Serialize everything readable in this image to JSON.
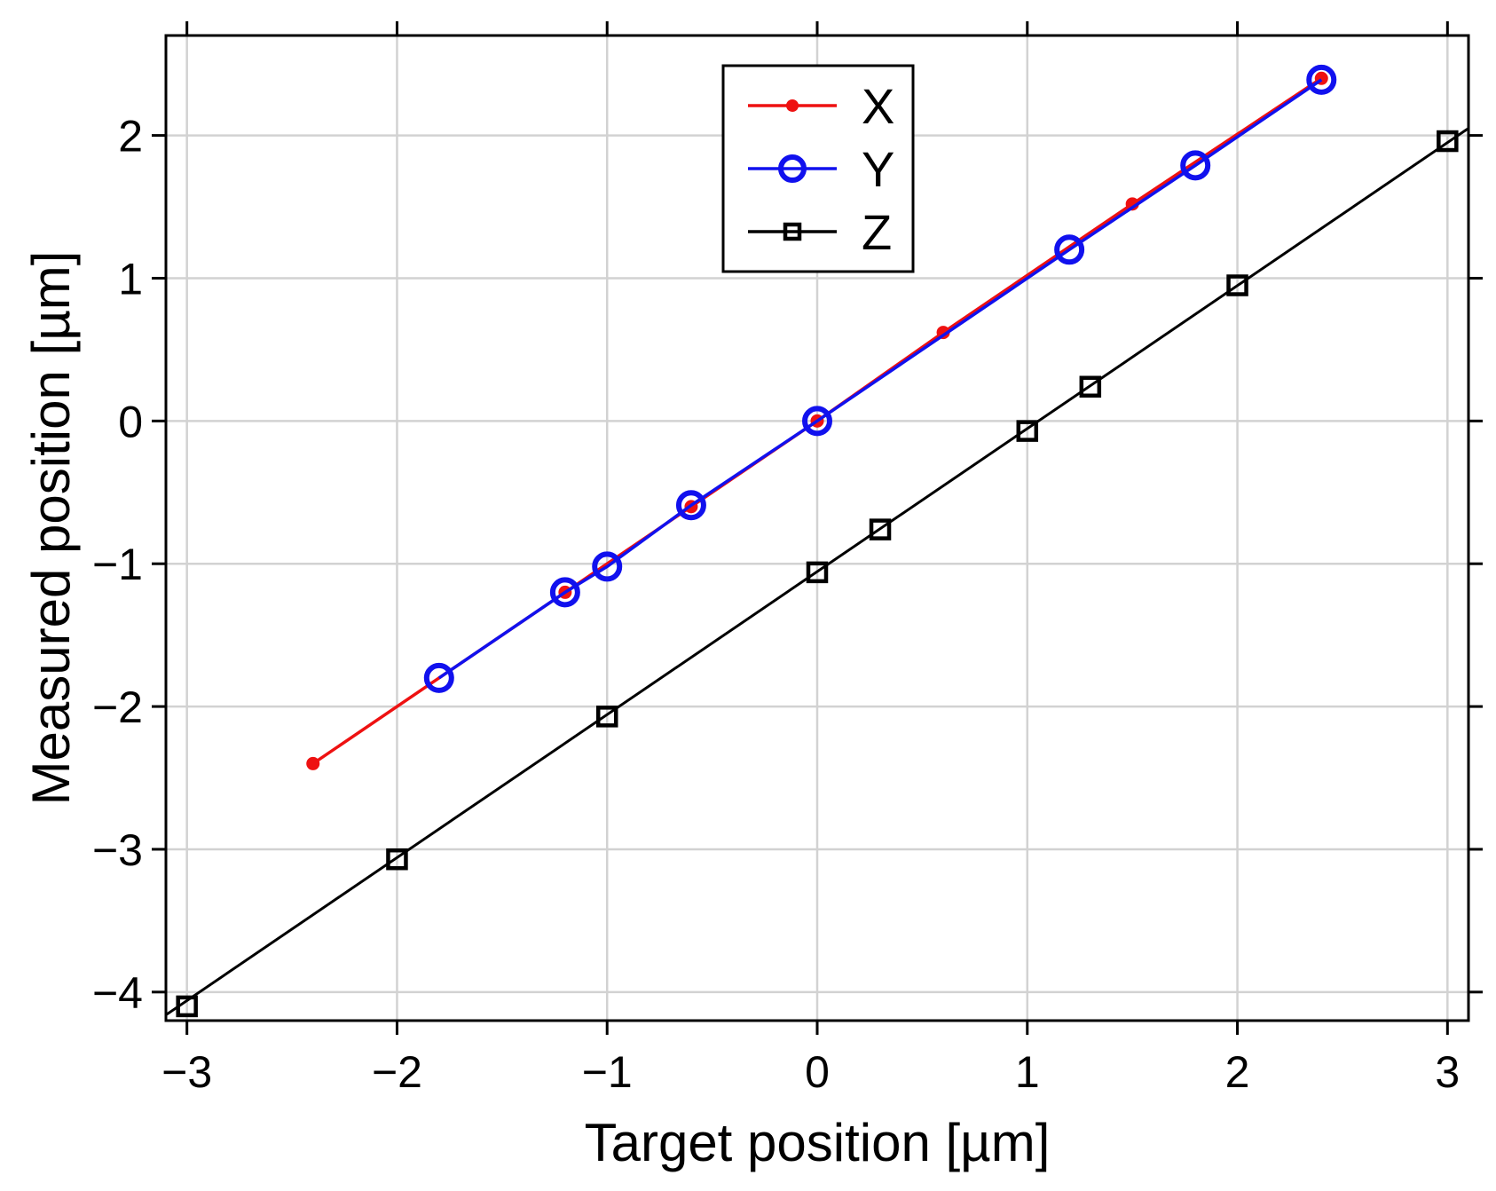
{
  "chart_data": {
    "type": "line",
    "xlabel": "Target position [µm]",
    "ylabel": "Measured position [µm]",
    "xlim": [
      -3.1,
      3.1
    ],
    "ylim": [
      -4.2,
      2.7
    ],
    "xticks": [
      -3,
      -2,
      -1,
      0,
      1,
      2,
      3
    ],
    "yticks": [
      -4,
      -3,
      -2,
      -1,
      0,
      1,
      2
    ],
    "xtick_labels": [
      "−3",
      "−2",
      "−1",
      "0",
      "1",
      "2",
      "3"
    ],
    "ytick_labels": [
      "−4",
      "−3",
      "−2",
      "−1",
      "0",
      "1",
      "2"
    ],
    "grid": true,
    "legend_position": "top-center",
    "series": [
      {
        "name": "X",
        "color": "#ee1111",
        "marker": "dot",
        "x": [
          -2.4,
          -1.2,
          -0.6,
          0,
          0.6,
          1.5,
          2.4
        ],
        "y": [
          -2.4,
          -1.2,
          -0.6,
          0,
          0.62,
          1.52,
          2.4
        ]
      },
      {
        "name": "Y",
        "color": "#1111ee",
        "marker": "circle",
        "x": [
          -1.8,
          -1.2,
          -1.0,
          -0.6,
          0,
          1.2,
          1.8,
          2.4
        ],
        "y": [
          -1.8,
          -1.2,
          -1.02,
          -0.59,
          0,
          1.2,
          1.79,
          2.39
        ]
      },
      {
        "name": "Z",
        "color": "#000000",
        "marker": "square",
        "x": [
          -3,
          -2,
          -1,
          0,
          0.3,
          1,
          1.3,
          2,
          3
        ],
        "y": [
          -4.1,
          -3.07,
          -2.07,
          -1.06,
          -0.76,
          -0.07,
          0.24,
          0.95,
          1.96
        ],
        "fit_line": {
          "x": [
            -3.1,
            3.1
          ],
          "y": [
            -4.16,
            2.05
          ]
        }
      }
    ]
  }
}
